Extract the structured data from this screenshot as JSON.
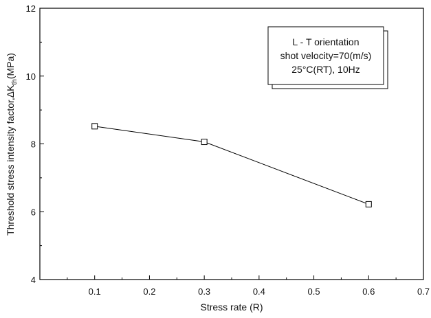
{
  "chart_data": {
    "type": "line",
    "title": "",
    "xlabel": "Stress rate (R)",
    "ylabel_main": "Threshold stress intensity factor,",
    "ylabel_symbol": "ΔK",
    "ylabel_subscript": "th",
    "ylabel_unit": "(MPa)",
    "xlim": [
      0.0,
      0.7
    ],
    "ylim": [
      4,
      12
    ],
    "xticks": [
      0.1,
      0.2,
      0.3,
      0.4,
      0.5,
      0.6,
      0.7
    ],
    "xtick_labels": [
      "0.1",
      "0.2",
      "0.3",
      "0.4",
      "0.5",
      "0.6",
      "0.7"
    ],
    "yticks": [
      4,
      6,
      8,
      10,
      12
    ],
    "ytick_labels": [
      "4",
      "6",
      "8",
      "10",
      "12"
    ],
    "grid": false,
    "series": [
      {
        "marker": "open-square",
        "color": "#000000",
        "x": [
          0.1,
          0.3,
          0.6
        ],
        "y": [
          8.52,
          8.06,
          6.22
        ]
      }
    ],
    "annotation_box": {
      "placement": "top-right",
      "lines": [
        "L - T orientation",
        "shot velocity=70(m/s)",
        "25°C(RT), 10Hz"
      ]
    }
  }
}
